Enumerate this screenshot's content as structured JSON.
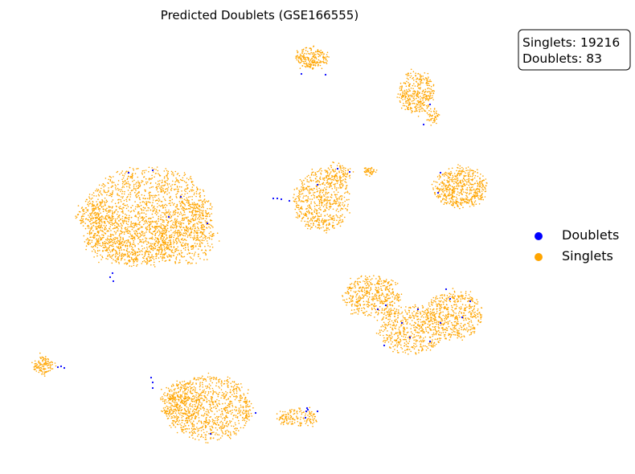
{
  "chart_data": {
    "type": "scatter",
    "title": "Predicted Doublets (GSE166555)",
    "xlabel": "",
    "ylabel": "",
    "axes_visible": false,
    "grid": false,
    "legend_placement": "right",
    "counts": {
      "singlets_label": "Singlets: 19216",
      "doublets_label": "Doublets: 83"
    },
    "series": [
      {
        "name": "Doublets",
        "color": "#0000ff",
        "count": 83
      },
      {
        "name": "Singlets",
        "color": "#ffa500",
        "count": 19216
      }
    ]
  }
}
